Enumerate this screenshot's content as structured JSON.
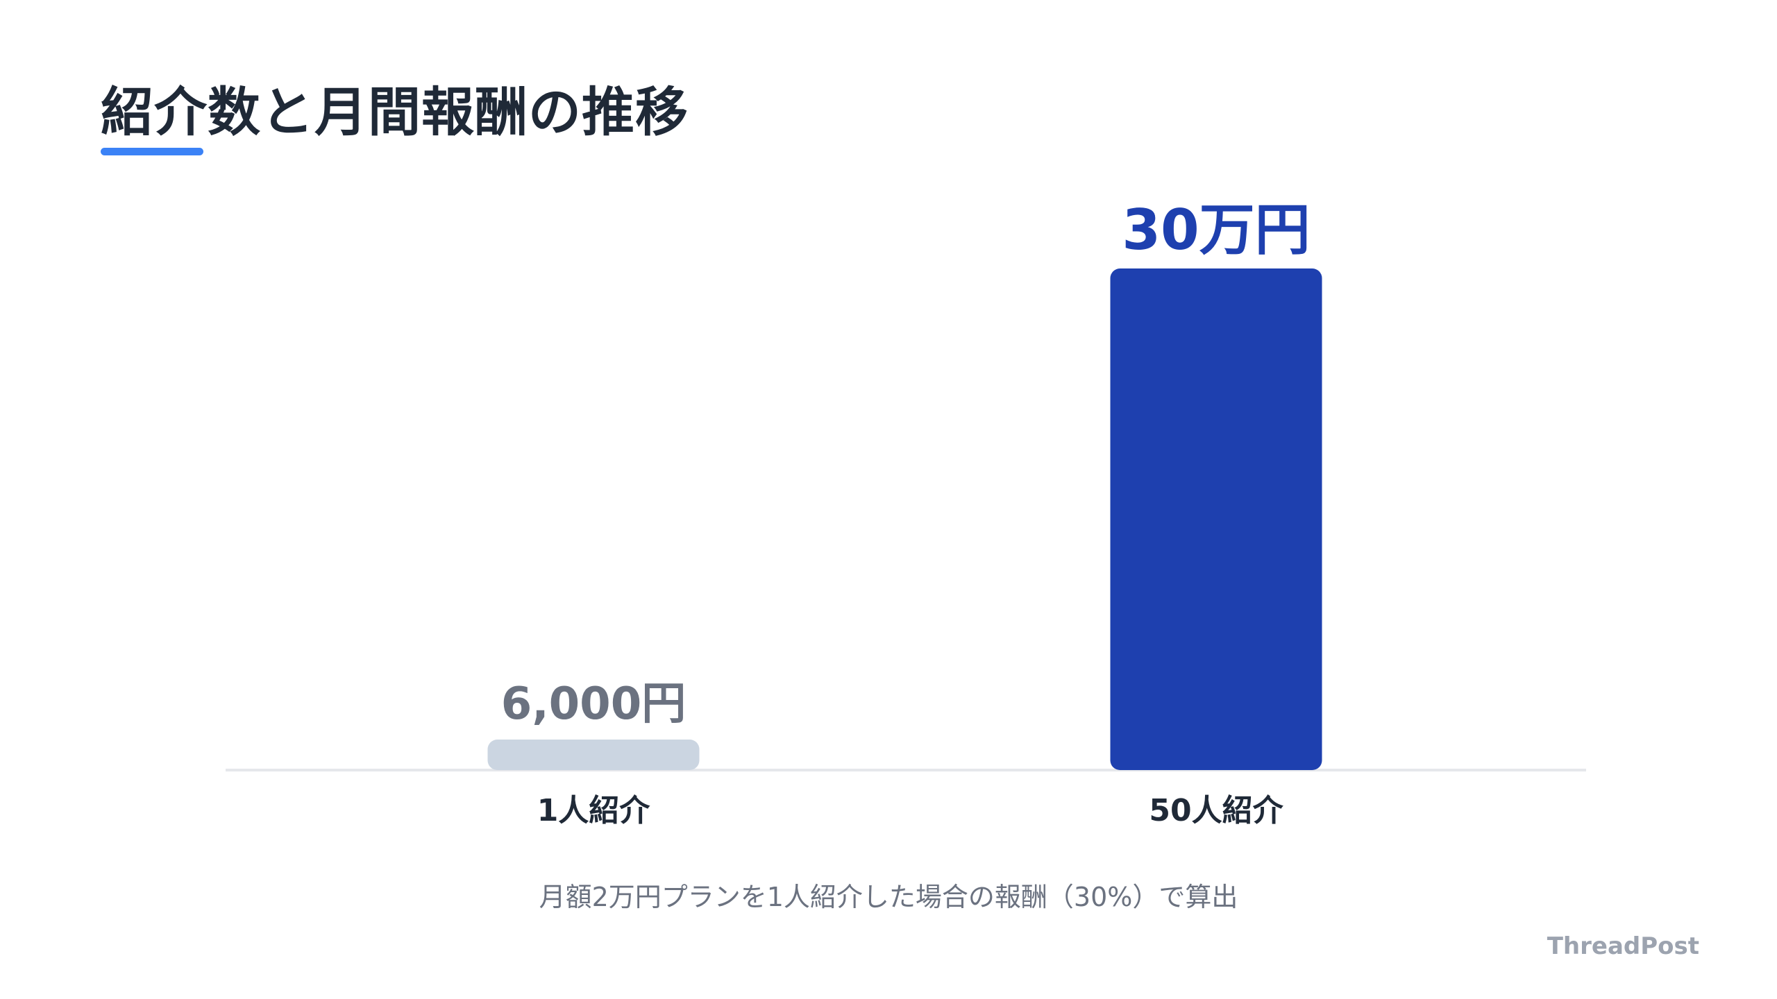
{
  "title": "紹介数と月間報酬の推移",
  "colors": {
    "title": "#1f2937",
    "accent_underline": "#3b82f6",
    "bar_highlight": "#1e40af",
    "bar_muted": "#cbd5e1",
    "label_muted": "#6b7280",
    "axis_line": "#e5e7eb",
    "category_label": "#1f2937"
  },
  "chart_data": {
    "type": "bar",
    "categories": [
      "1人紹介",
      "50人紹介"
    ],
    "values": [
      6000,
      300000
    ],
    "value_labels": [
      "6,000円",
      "30万円"
    ],
    "ylim": [
      0,
      300000
    ],
    "grid": false,
    "legend": "none"
  },
  "footnote": "月額2万円プランを1人紹介した場合の報酬（30%）で算出",
  "brand": "ThreadPost"
}
